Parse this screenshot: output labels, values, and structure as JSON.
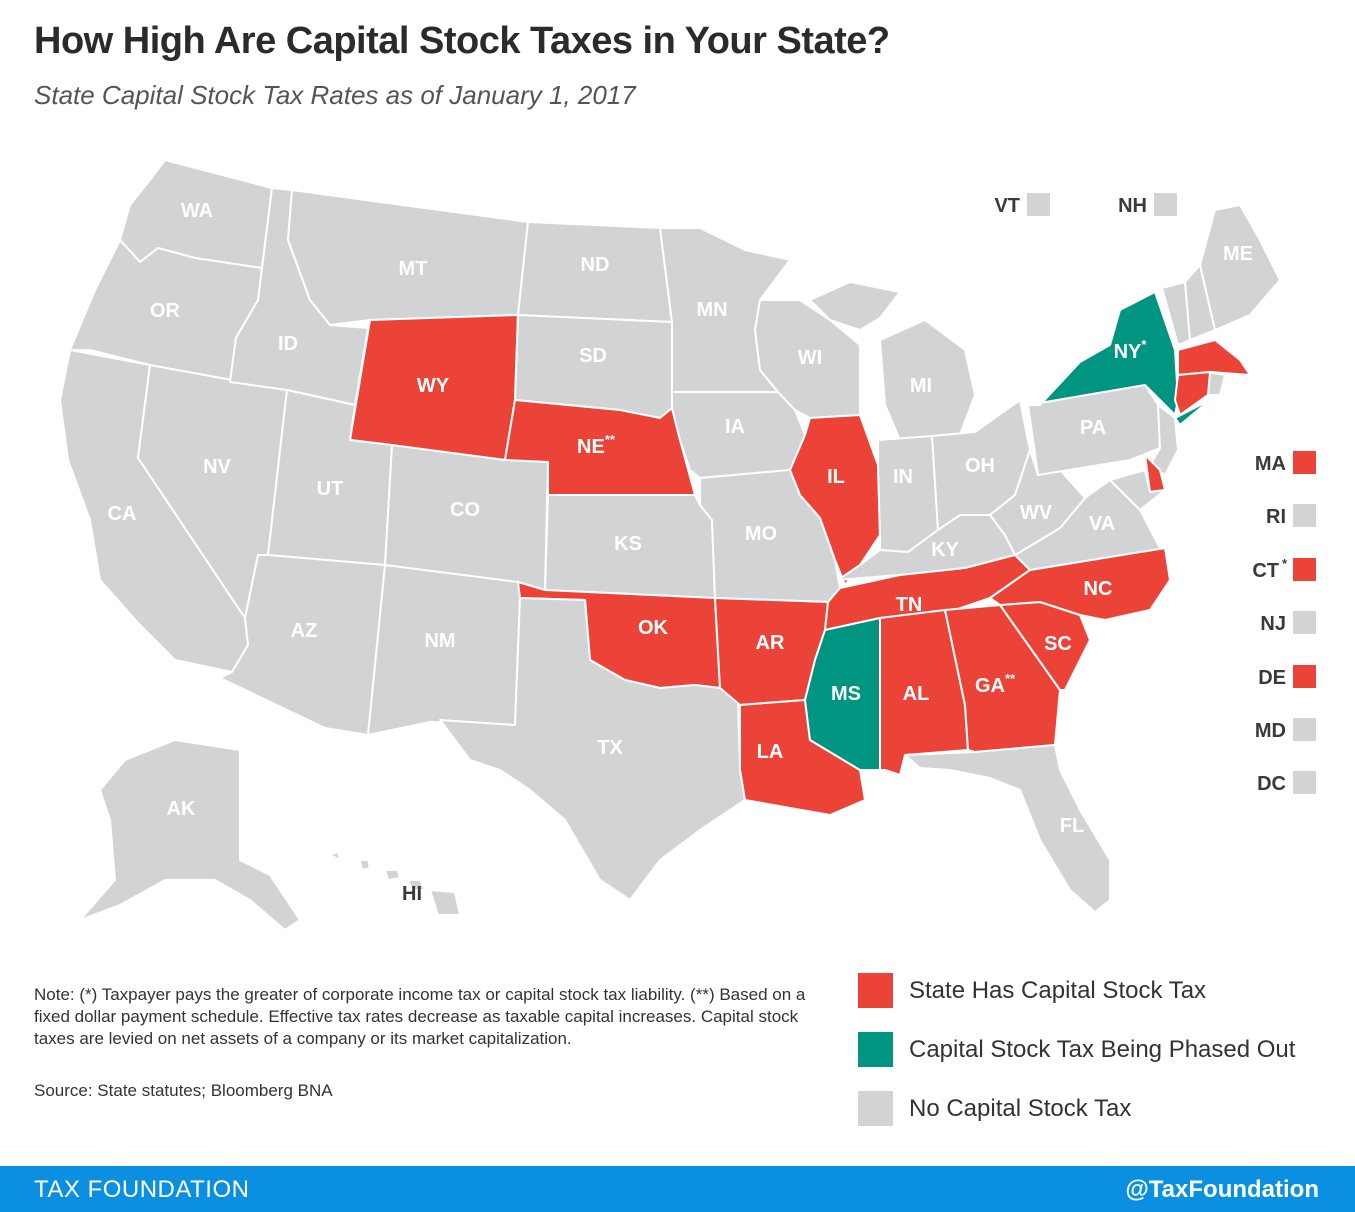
{
  "title": "How High Are Capital Stock Taxes in Your State?",
  "subtitle": "State Capital Stock Tax Rates as of January 1, 2017",
  "colors": {
    "has_tax": "#ec4339",
    "phased_out": "#009581",
    "no_tax": "#d2d3d5",
    "footer": "#0b8fe0"
  },
  "states": {
    "WA": {
      "label": "WA",
      "status": "no_tax"
    },
    "OR": {
      "label": "OR",
      "status": "no_tax"
    },
    "CA": {
      "label": "CA",
      "status": "no_tax"
    },
    "NV": {
      "label": "NV",
      "status": "no_tax"
    },
    "ID": {
      "label": "ID",
      "status": "no_tax"
    },
    "MT": {
      "label": "MT",
      "status": "no_tax"
    },
    "WY": {
      "label": "WY",
      "status": "has_tax"
    },
    "UT": {
      "label": "UT",
      "status": "no_tax"
    },
    "CO": {
      "label": "CO",
      "status": "no_tax"
    },
    "AZ": {
      "label": "AZ",
      "status": "no_tax"
    },
    "NM": {
      "label": "NM",
      "status": "no_tax"
    },
    "ND": {
      "label": "ND",
      "status": "no_tax"
    },
    "SD": {
      "label": "SD",
      "status": "no_tax"
    },
    "NE": {
      "label": "NE",
      "sup": "**",
      "status": "has_tax"
    },
    "KS": {
      "label": "KS",
      "status": "no_tax"
    },
    "OK": {
      "label": "OK",
      "status": "has_tax"
    },
    "TX": {
      "label": "TX",
      "status": "no_tax"
    },
    "MN": {
      "label": "MN",
      "status": "no_tax"
    },
    "IA": {
      "label": "IA",
      "status": "no_tax"
    },
    "MO": {
      "label": "MO",
      "status": "no_tax"
    },
    "AR": {
      "label": "AR",
      "status": "has_tax"
    },
    "LA": {
      "label": "LA",
      "status": "has_tax"
    },
    "WI": {
      "label": "WI",
      "status": "no_tax"
    },
    "IL": {
      "label": "IL",
      "status": "has_tax"
    },
    "MI": {
      "label": "MI",
      "status": "no_tax"
    },
    "IN": {
      "label": "IN",
      "status": "no_tax"
    },
    "OH": {
      "label": "OH",
      "status": "no_tax"
    },
    "KY": {
      "label": "KY",
      "status": "no_tax"
    },
    "TN": {
      "label": "TN",
      "status": "has_tax"
    },
    "MS": {
      "label": "MS",
      "status": "phased_out"
    },
    "AL": {
      "label": "AL",
      "status": "has_tax"
    },
    "GA": {
      "label": "GA",
      "sup": "**",
      "status": "has_tax"
    },
    "FL": {
      "label": "FL",
      "status": "no_tax"
    },
    "SC": {
      "label": "SC",
      "status": "has_tax"
    },
    "NC": {
      "label": "NC",
      "status": "has_tax"
    },
    "VA": {
      "label": "VA",
      "status": "no_tax"
    },
    "WV": {
      "label": "WV",
      "status": "no_tax"
    },
    "PA": {
      "label": "PA",
      "status": "no_tax"
    },
    "NY": {
      "label": "NY",
      "sup": "*",
      "status": "phased_out"
    },
    "ME": {
      "label": "ME",
      "status": "no_tax"
    },
    "AK": {
      "label": "AK",
      "status": "no_tax"
    },
    "HI": {
      "label": "HI",
      "status": "no_tax"
    }
  },
  "small_states": [
    {
      "label": "VT",
      "status": "no_tax"
    },
    {
      "label": "NH",
      "status": "no_tax"
    },
    {
      "label": "MA",
      "status": "has_tax"
    },
    {
      "label": "RI",
      "status": "no_tax"
    },
    {
      "label": "CT",
      "sup": "*",
      "status": "has_tax"
    },
    {
      "label": "NJ",
      "status": "no_tax"
    },
    {
      "label": "DE",
      "status": "has_tax"
    },
    {
      "label": "MD",
      "status": "no_tax"
    },
    {
      "label": "DC",
      "status": "no_tax"
    }
  ],
  "legend": [
    {
      "label": "State Has Capital Stock Tax",
      "status": "has_tax"
    },
    {
      "label": "Capital Stock Tax Being Phased Out",
      "status": "phased_out"
    },
    {
      "label": "No Capital Stock Tax",
      "status": "no_tax"
    }
  ],
  "note": "Note: (*) Taxpayer pays the greater of corporate income tax or capital stock tax liability. (**) Based on a fixed dollar payment schedule. Effective tax rates decrease as taxable capital increases. Capital stock taxes are levied on net assets of a company or its market capitalization.",
  "source": "Source: State statutes; Bloomberg BNA",
  "footer": {
    "left": "TAX FOUNDATION",
    "right": "@TaxFoundation"
  }
}
